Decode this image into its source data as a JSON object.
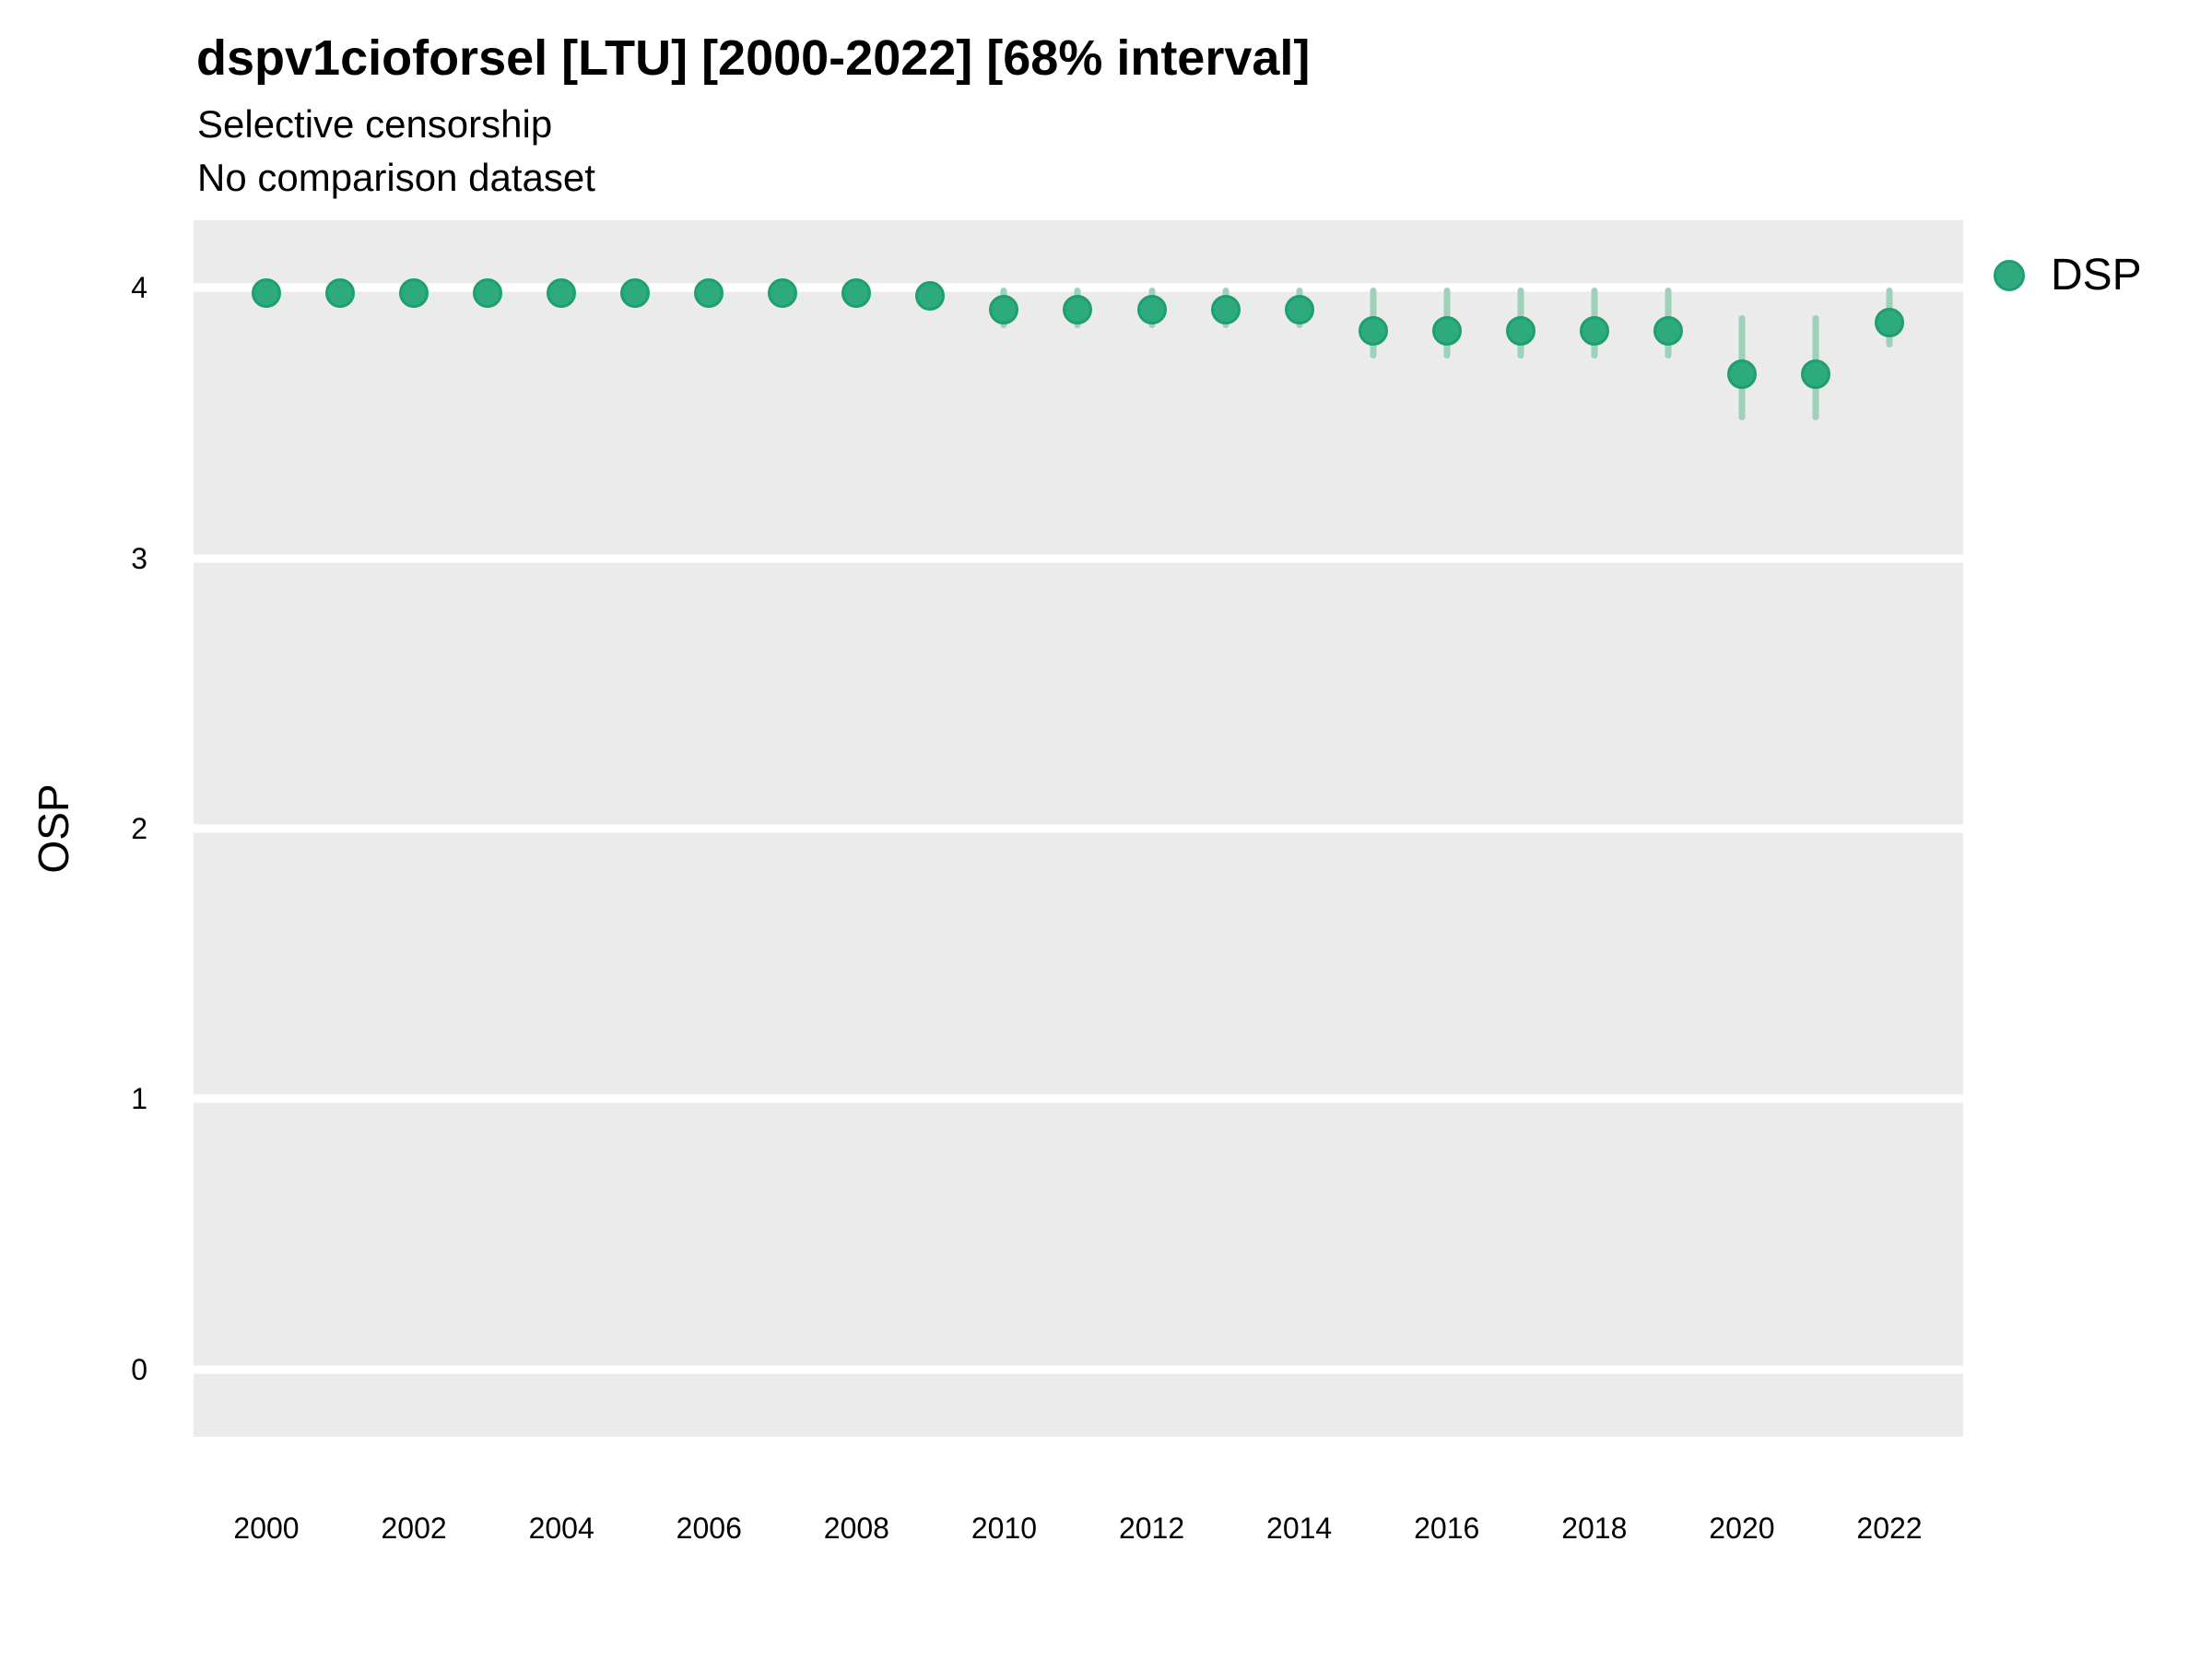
{
  "title": "dspv1cioforsel [LTU] [2000-2022] [68% interval]",
  "subtitle1": "Selective censorship",
  "subtitle2": "No comparison dataset",
  "y_axis_title": "OSP",
  "legend": {
    "label": "DSP"
  },
  "colors": {
    "point_fill": "#2DAB7E",
    "point_border": "#1F9F70",
    "interval_bar": "#9DD1BA",
    "panel_background": "#EBEBEB",
    "gridline": "#FFFFFF",
    "text": "#000000"
  },
  "chart_data": {
    "type": "scatter",
    "title": "dspv1cioforsel [LTU] [2000-2022] [68% interval]",
    "subtitle": [
      "Selective censorship",
      "No comparison dataset"
    ],
    "xlabel": "",
    "ylabel": "OSP",
    "interval": "68%",
    "ylim": [
      -0.25,
      4.25
    ],
    "yticks": [
      0,
      1,
      2,
      3,
      4
    ],
    "xticks": [
      2000,
      2002,
      2004,
      2006,
      2008,
      2010,
      2012,
      2014,
      2016,
      2018,
      2020,
      2022
    ],
    "grid": "major-horizontal",
    "legend_position": "right",
    "series": [
      {
        "name": "DSP",
        "x": [
          2000,
          2001,
          2002,
          2003,
          2004,
          2005,
          2006,
          2007,
          2008,
          2009,
          2010,
          2011,
          2012,
          2013,
          2014,
          2015,
          2016,
          2017,
          2018,
          2019,
          2020,
          2021,
          2022
        ],
        "y": [
          3.98,
          3.98,
          3.98,
          3.98,
          3.98,
          3.98,
          3.98,
          3.98,
          3.98,
          3.97,
          3.92,
          3.92,
          3.92,
          3.92,
          3.92,
          3.84,
          3.84,
          3.84,
          3.84,
          3.84,
          3.68,
          3.68,
          3.87
        ],
        "y_lo": [
          3.94,
          3.94,
          3.94,
          3.94,
          3.94,
          3.94,
          3.94,
          3.94,
          3.94,
          3.93,
          3.85,
          3.85,
          3.85,
          3.85,
          3.85,
          3.74,
          3.74,
          3.74,
          3.74,
          3.74,
          3.51,
          3.51,
          3.78
        ],
        "y_hi": [
          4.01,
          4.01,
          4.01,
          4.01,
          4.01,
          4.01,
          4.01,
          4.01,
          4.01,
          4.01,
          4.0,
          4.0,
          4.0,
          4.0,
          4.0,
          4.0,
          4.0,
          4.0,
          4.0,
          4.0,
          3.9,
          3.9,
          4.0
        ]
      }
    ]
  }
}
